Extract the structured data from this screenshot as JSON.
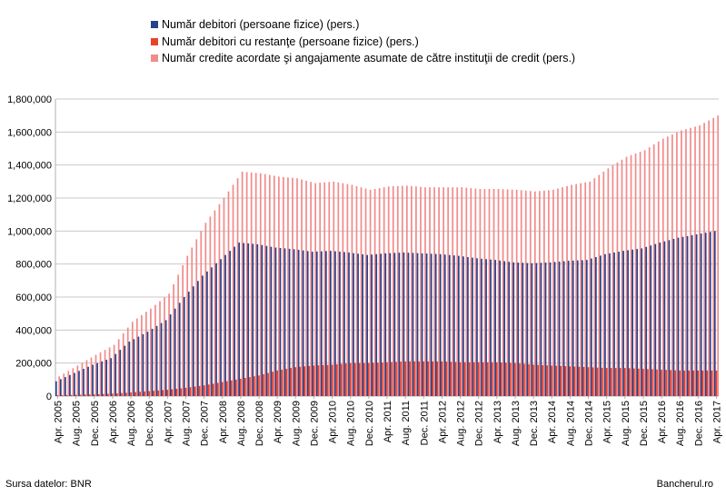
{
  "chart_data": {
    "type": "bar",
    "title": "",
    "xlabel": "",
    "ylabel": "",
    "ylim": [
      0,
      1800000
    ],
    "y_ticks": [
      "0",
      "200,000",
      "400,000",
      "600,000",
      "800,000",
      "1,000,000",
      "1,200,000",
      "1,400,000",
      "1,600,000",
      "1,800,000"
    ],
    "x_tick_labels": [
      "Apr. 2005",
      "Aug. 2005",
      "Dec. 2005",
      "Apr. 2006",
      "Aug. 2006",
      "Dec. 2006",
      "Apr. 2007",
      "Aug. 2007",
      "Dec. 2007",
      "Apr. 2008",
      "Aug. 2008",
      "Dec. 2008",
      "Apr. 2009",
      "Aug. 2009",
      "Dec. 2009",
      "Apr. 2010",
      "Aug. 2010",
      "Dec. 2010",
      "Apr. 2011",
      "Aug. 2011",
      "Dec. 2011",
      "Apr. 2012",
      "Aug. 2012",
      "Dec. 2012",
      "Apr. 2013",
      "Aug. 2013",
      "Dec. 2013",
      "Apr. 2014",
      "Aug. 2014",
      "Dec. 2014",
      "Apr. 2015",
      "Aug. 2015",
      "Dec. 2015",
      "Apr. 2016",
      "Aug. 2016",
      "Dec. 2016",
      "Apr. 2017"
    ],
    "grid": true,
    "legend_position": "top",
    "period": {
      "start": "Apr. 2005",
      "end": "Apr. 2017",
      "frequency": "monthly"
    },
    "series": [
      {
        "name": "Număr debitori (persoane fizice) (pers.)",
        "color": "#26428b",
        "anchors": [
          [
            "Apr. 2005",
            90000
          ],
          [
            "Dec. 2005",
            190000
          ],
          [
            "Apr. 2006",
            230000
          ],
          [
            "Aug. 2006",
            330000
          ],
          [
            "Dec. 2006",
            390000
          ],
          [
            "Apr. 2007",
            460000
          ],
          [
            "Aug. 2007",
            600000
          ],
          [
            "Dec. 2007",
            730000
          ],
          [
            "Apr. 2008",
            830000
          ],
          [
            "Aug. 2008",
            930000
          ],
          [
            "Dec. 2008",
            920000
          ],
          [
            "Apr. 2009",
            900000
          ],
          [
            "Aug. 2009",
            890000
          ],
          [
            "Dec. 2009",
            875000
          ],
          [
            "Apr. 2010",
            880000
          ],
          [
            "Aug. 2010",
            870000
          ],
          [
            "Dec. 2010",
            855000
          ],
          [
            "Apr. 2011",
            865000
          ],
          [
            "Aug. 2011",
            870000
          ],
          [
            "Dec. 2011",
            865000
          ],
          [
            "Apr. 2012",
            860000
          ],
          [
            "Aug. 2012",
            850000
          ],
          [
            "Dec. 2012",
            835000
          ],
          [
            "Apr. 2013",
            825000
          ],
          [
            "Aug. 2013",
            810000
          ],
          [
            "Dec. 2013",
            805000
          ],
          [
            "Apr. 2014",
            810000
          ],
          [
            "Aug. 2014",
            820000
          ],
          [
            "Dec. 2014",
            825000
          ],
          [
            "Apr. 2015",
            860000
          ],
          [
            "Aug. 2015",
            880000
          ],
          [
            "Dec. 2015",
            895000
          ],
          [
            "Apr. 2016",
            930000
          ],
          [
            "Aug. 2016",
            960000
          ],
          [
            "Dec. 2016",
            980000
          ],
          [
            "Apr. 2017",
            1000000
          ]
        ]
      },
      {
        "name": "Număr debitori cu restanţe (persoane fizice) (pers.)",
        "color": "#e8432a",
        "anchors": [
          [
            "Apr. 2005",
            5000
          ],
          [
            "Dec. 2005",
            10000
          ],
          [
            "Apr. 2006",
            15000
          ],
          [
            "Aug. 2006",
            22000
          ],
          [
            "Dec. 2006",
            30000
          ],
          [
            "Apr. 2007",
            38000
          ],
          [
            "Aug. 2007",
            50000
          ],
          [
            "Dec. 2007",
            65000
          ],
          [
            "Apr. 2008",
            85000
          ],
          [
            "Aug. 2008",
            105000
          ],
          [
            "Dec. 2008",
            125000
          ],
          [
            "Apr. 2009",
            155000
          ],
          [
            "Aug. 2009",
            175000
          ],
          [
            "Dec. 2009",
            185000
          ],
          [
            "Apr. 2010",
            190000
          ],
          [
            "Aug. 2010",
            200000
          ],
          [
            "Dec. 2010",
            200000
          ],
          [
            "Apr. 2011",
            205000
          ],
          [
            "Aug. 2011",
            210000
          ],
          [
            "Dec. 2011",
            210000
          ],
          [
            "Apr. 2012",
            210000
          ],
          [
            "Aug. 2012",
            205000
          ],
          [
            "Dec. 2012",
            205000
          ],
          [
            "Apr. 2013",
            205000
          ],
          [
            "Aug. 2013",
            200000
          ],
          [
            "Dec. 2013",
            190000
          ],
          [
            "Apr. 2014",
            185000
          ],
          [
            "Aug. 2014",
            180000
          ],
          [
            "Dec. 2014",
            175000
          ],
          [
            "Apr. 2015",
            170000
          ],
          [
            "Aug. 2015",
            170000
          ],
          [
            "Dec. 2015",
            165000
          ],
          [
            "Apr. 2016",
            160000
          ],
          [
            "Aug. 2016",
            155000
          ],
          [
            "Dec. 2016",
            155000
          ],
          [
            "Apr. 2017",
            155000
          ]
        ]
      },
      {
        "name": "Număr credite acordate şi angajamente asumate de către instituţii de credit (pers.)",
        "color": "#f28b8b",
        "anchors": [
          [
            "Apr. 2005",
            120000
          ],
          [
            "Dec. 2005",
            250000
          ],
          [
            "Apr. 2006",
            310000
          ],
          [
            "Aug. 2006",
            450000
          ],
          [
            "Dec. 2006",
            530000
          ],
          [
            "Apr. 2007",
            620000
          ],
          [
            "Aug. 2007",
            850000
          ],
          [
            "Dec. 2007",
            1050000
          ],
          [
            "Apr. 2008",
            1200000
          ],
          [
            "Aug. 2008",
            1360000
          ],
          [
            "Dec. 2008",
            1350000
          ],
          [
            "Apr. 2009",
            1330000
          ],
          [
            "Aug. 2009",
            1320000
          ],
          [
            "Dec. 2009",
            1290000
          ],
          [
            "Apr. 2010",
            1300000
          ],
          [
            "Aug. 2010",
            1280000
          ],
          [
            "Dec. 2010",
            1250000
          ],
          [
            "Apr. 2011",
            1270000
          ],
          [
            "Aug. 2011",
            1275000
          ],
          [
            "Dec. 2011",
            1265000
          ],
          [
            "Apr. 2012",
            1265000
          ],
          [
            "Aug. 2012",
            1265000
          ],
          [
            "Dec. 2012",
            1255000
          ],
          [
            "Apr. 2013",
            1255000
          ],
          [
            "Aug. 2013",
            1250000
          ],
          [
            "Dec. 2013",
            1240000
          ],
          [
            "Apr. 2014",
            1250000
          ],
          [
            "Aug. 2014",
            1280000
          ],
          [
            "Dec. 2014",
            1300000
          ],
          [
            "Apr. 2015",
            1380000
          ],
          [
            "Aug. 2015",
            1450000
          ],
          [
            "Dec. 2015",
            1490000
          ],
          [
            "Apr. 2016",
            1560000
          ],
          [
            "Aug. 2016",
            1610000
          ],
          [
            "Dec. 2016",
            1640000
          ],
          [
            "Apr. 2017",
            1700000
          ]
        ]
      }
    ]
  },
  "footer": {
    "source": "Sursa datelor: BNR",
    "site": "Bancherul.ro"
  }
}
